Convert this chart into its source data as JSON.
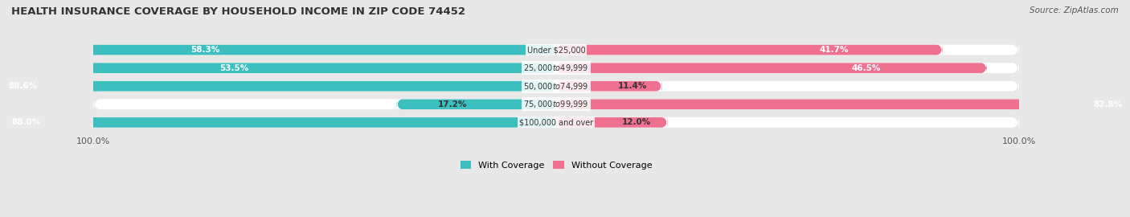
{
  "title": "HEALTH INSURANCE COVERAGE BY HOUSEHOLD INCOME IN ZIP CODE 74452",
  "source": "Source: ZipAtlas.com",
  "categories": [
    "Under $25,000",
    "$25,000 to $49,999",
    "$50,000 to $74,999",
    "$75,000 to $99,999",
    "$100,000 and over"
  ],
  "with_coverage": [
    58.3,
    53.5,
    88.6,
    17.2,
    88.0
  ],
  "without_coverage": [
    41.7,
    46.5,
    11.4,
    82.8,
    12.0
  ],
  "color_with": "#3dbfbf",
  "color_without": "#f07090",
  "bar_bg_color": "#f0f0f0",
  "fig_bg_color": "#e8e8e8",
  "bar_height": 0.55,
  "xlim": [
    0,
    100
  ],
  "legend_labels": [
    "With Coverage",
    "Without Coverage"
  ],
  "x_ticks": [
    0,
    100
  ],
  "x_tick_labels": [
    "100.0%",
    "100.0%"
  ]
}
